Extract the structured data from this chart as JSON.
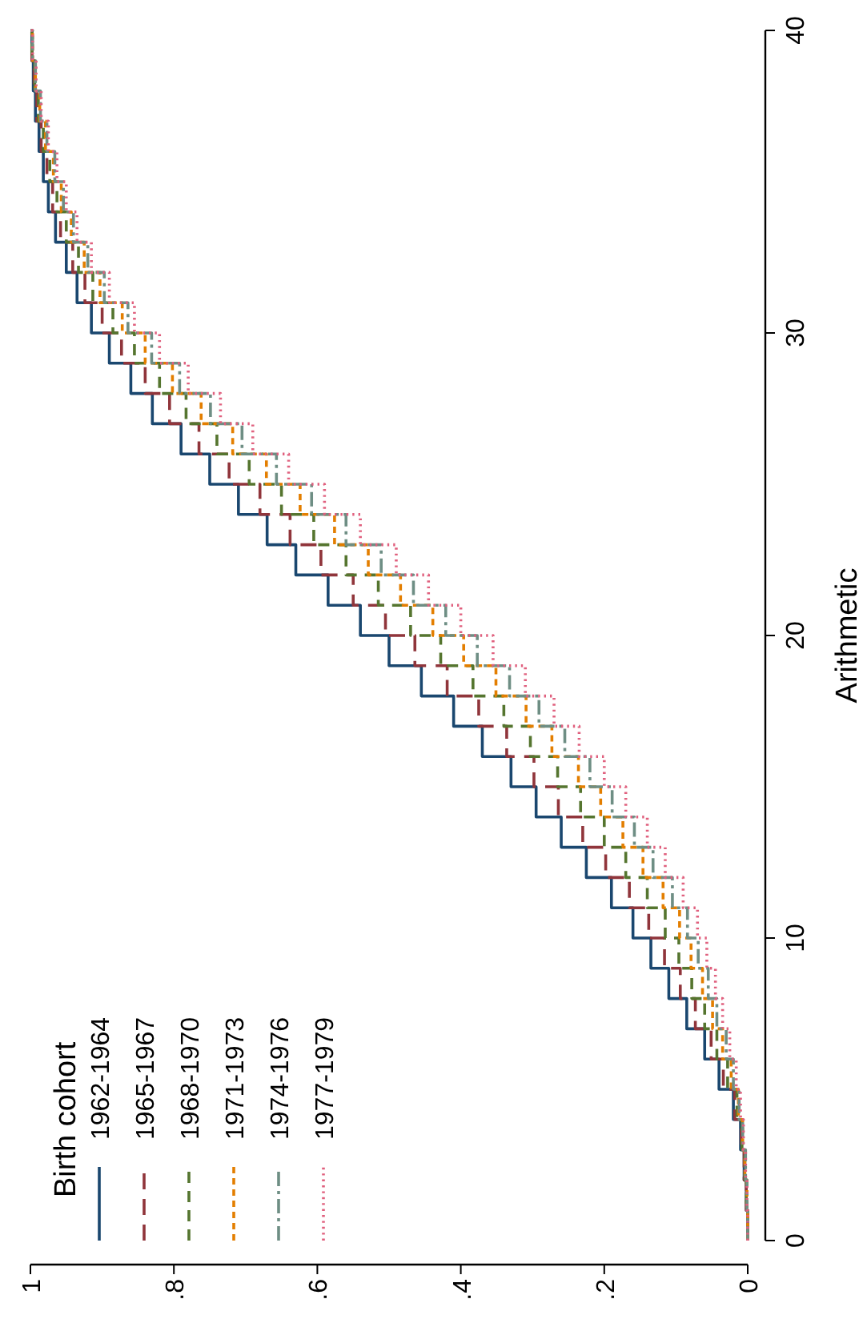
{
  "chart_data": {
    "type": "step",
    "y2label": "Arithmetic",
    "legend_title": "Birth cohort",
    "legend": "bottom left",
    "grid": false,
    "marker": "none",
    "xlim": [
      1,
      0
    ],
    "xticks": [
      {
        "value": 1,
        "label": "1"
      },
      {
        "value": 0.8,
        "label": ".8"
      },
      {
        "value": 0.6,
        "label": ".6"
      },
      {
        "value": 0.4,
        "label": ".4"
      },
      {
        "value": 0.2,
        "label": ".2"
      },
      {
        "value": 0,
        "label": "0"
      }
    ],
    "y2lim": [
      0,
      40
    ],
    "y2ticks": [
      0,
      10,
      20,
      30,
      40
    ],
    "series": [
      {
        "name": "1962-1964",
        "color": "#1a476f",
        "line_style": "solid",
        "axis": "y2",
        "x": [
          0,
          0.002,
          0.005,
          0.01,
          0.02,
          0.04,
          0.06,
          0.085,
          0.11,
          0.135,
          0.16,
          0.19,
          0.225,
          0.26,
          0.295,
          0.33,
          0.37,
          0.41,
          0.455,
          0.5,
          0.54,
          0.585,
          0.63,
          0.67,
          0.71,
          0.75,
          0.79,
          0.83,
          0.86,
          0.89,
          0.915,
          0.935,
          0.95,
          0.965,
          0.975,
          0.982,
          0.988,
          0.993,
          0.996,
          0.998,
          1
        ],
        "values": [
          0,
          1,
          2,
          3,
          4,
          5,
          6,
          7,
          8,
          9,
          10,
          11,
          12,
          13,
          14,
          15,
          16,
          17,
          18,
          19,
          20,
          21,
          22,
          23,
          24,
          25,
          26,
          27,
          28,
          29,
          30,
          31,
          32,
          33,
          34,
          35,
          36,
          37,
          38,
          39,
          40
        ]
      },
      {
        "name": "1965-1967",
        "color": "#90353b",
        "line_style": "dashed",
        "axis": "y2",
        "x": [
          0,
          0.002,
          0.005,
          0.009,
          0.018,
          0.034,
          0.051,
          0.073,
          0.094,
          0.116,
          0.138,
          0.165,
          0.198,
          0.23,
          0.264,
          0.298,
          0.336,
          0.375,
          0.419,
          0.464,
          0.505,
          0.55,
          0.595,
          0.638,
          0.68,
          0.723,
          0.765,
          0.806,
          0.84,
          0.873,
          0.9,
          0.924,
          0.941,
          0.958,
          0.969,
          0.977,
          0.985,
          0.991,
          0.995,
          0.998,
          1
        ],
        "values": [
          0,
          1,
          2,
          3,
          4,
          5,
          6,
          7,
          8,
          9,
          10,
          11,
          12,
          13,
          14,
          15,
          16,
          17,
          18,
          19,
          20,
          21,
          22,
          23,
          24,
          25,
          26,
          27,
          28,
          29,
          30,
          31,
          32,
          33,
          34,
          35,
          36,
          37,
          38,
          39,
          40
        ]
      },
      {
        "name": "1968-1970",
        "color": "#55752f",
        "line_style": "dashed",
        "axis": "y2",
        "x": [
          0,
          0.002,
          0.004,
          0.008,
          0.015,
          0.028,
          0.043,
          0.06,
          0.078,
          0.096,
          0.115,
          0.14,
          0.17,
          0.2,
          0.233,
          0.265,
          0.303,
          0.34,
          0.383,
          0.428,
          0.47,
          0.515,
          0.56,
          0.605,
          0.65,
          0.695,
          0.74,
          0.783,
          0.82,
          0.855,
          0.885,
          0.913,
          0.933,
          0.95,
          0.963,
          0.973,
          0.982,
          0.989,
          0.994,
          0.998,
          1
        ],
        "values": [
          0,
          1,
          2,
          3,
          4,
          5,
          6,
          7,
          8,
          9,
          10,
          11,
          12,
          13,
          14,
          15,
          16,
          17,
          18,
          19,
          20,
          21,
          22,
          23,
          24,
          25,
          26,
          27,
          28,
          29,
          30,
          31,
          32,
          33,
          34,
          35,
          36,
          37,
          38,
          39,
          40
        ]
      },
      {
        "name": "1971-1973",
        "color": "#e37e00",
        "line_style": "dashed",
        "axis": "y2",
        "x": [
          0,
          0.001,
          0.004,
          0.007,
          0.013,
          0.023,
          0.035,
          0.049,
          0.063,
          0.079,
          0.095,
          0.118,
          0.146,
          0.174,
          0.205,
          0.236,
          0.273,
          0.309,
          0.351,
          0.396,
          0.439,
          0.484,
          0.529,
          0.576,
          0.624,
          0.671,
          0.718,
          0.762,
          0.802,
          0.84,
          0.872,
          0.903,
          0.925,
          0.943,
          0.957,
          0.968,
          0.979,
          0.987,
          0.993,
          0.997,
          1
        ],
        "values": [
          0,
          1,
          2,
          3,
          4,
          5,
          6,
          7,
          8,
          9,
          10,
          11,
          12,
          13,
          14,
          15,
          16,
          17,
          18,
          19,
          20,
          21,
          22,
          23,
          24,
          25,
          26,
          27,
          28,
          29,
          30,
          31,
          32,
          33,
          34,
          35,
          36,
          37,
          38,
          39,
          40
        ]
      },
      {
        "name": "1974-1976",
        "color": "#6e8e84",
        "line_style": "dashed",
        "axis": "y2",
        "x": [
          0,
          0.001,
          0.003,
          0.007,
          0.012,
          0.02,
          0.03,
          0.043,
          0.055,
          0.069,
          0.084,
          0.105,
          0.132,
          0.158,
          0.189,
          0.22,
          0.255,
          0.291,
          0.332,
          0.377,
          0.421,
          0.466,
          0.511,
          0.56,
          0.608,
          0.657,
          0.705,
          0.749,
          0.792,
          0.831,
          0.864,
          0.897,
          0.92,
          0.94,
          0.954,
          0.966,
          0.977,
          0.986,
          0.993,
          0.997,
          1
        ],
        "values": [
          0,
          1,
          2,
          3,
          4,
          5,
          6,
          7,
          8,
          9,
          10,
          11,
          12,
          13,
          14,
          15,
          16,
          17,
          18,
          19,
          20,
          21,
          22,
          23,
          24,
          25,
          26,
          27,
          28,
          29,
          30,
          31,
          32,
          33,
          34,
          35,
          36,
          37,
          38,
          39,
          40
        ]
      },
      {
        "name": "1977-1979",
        "color": "#e0607e",
        "line_style": "dotted",
        "axis": "y2",
        "x": [
          0,
          0.001,
          0.003,
          0.006,
          0.01,
          0.016,
          0.025,
          0.035,
          0.045,
          0.057,
          0.07,
          0.09,
          0.115,
          0.14,
          0.17,
          0.2,
          0.235,
          0.27,
          0.31,
          0.355,
          0.4,
          0.445,
          0.49,
          0.54,
          0.59,
          0.64,
          0.69,
          0.735,
          0.78,
          0.82,
          0.855,
          0.89,
          0.915,
          0.935,
          0.95,
          0.963,
          0.975,
          0.985,
          0.992,
          0.997,
          1
        ],
        "values": [
          0,
          1,
          2,
          3,
          4,
          5,
          6,
          7,
          8,
          9,
          10,
          11,
          12,
          13,
          14,
          15,
          16,
          17,
          18,
          19,
          20,
          21,
          22,
          23,
          24,
          25,
          26,
          27,
          28,
          29,
          30,
          31,
          32,
          33,
          34,
          35,
          36,
          37,
          38,
          39,
          40
        ]
      }
    ]
  }
}
